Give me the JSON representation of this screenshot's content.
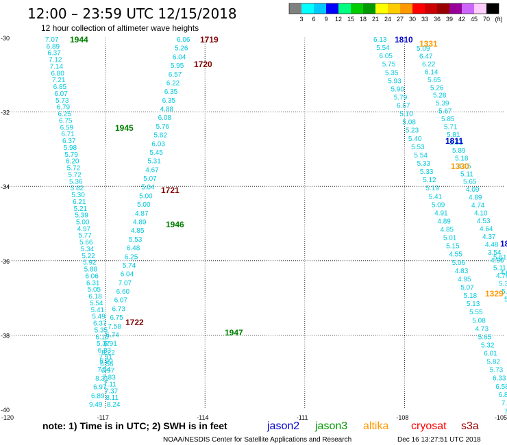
{
  "header": {
    "title": "12:00 – 23:59 UTC 12/15/2018",
    "subtitle": "12 hour collection of altimeter wave heights"
  },
  "colorbar": {
    "colors": [
      "#808080",
      "#00ffff",
      "#00c8ff",
      "#0000ff",
      "#00ff80",
      "#00cc00",
      "#009900",
      "#ffff00",
      "#ffcc00",
      "#ff9900",
      "#ff0000",
      "#cc0000",
      "#990000",
      "#990099",
      "#cc66ff",
      "#ffccff",
      "#000000"
    ],
    "labels": [
      "3",
      "6",
      "9",
      "12",
      "15",
      "18",
      "21",
      "24",
      "27",
      "30",
      "33",
      "36",
      "39",
      "42",
      "45",
      "70",
      "(ft)"
    ]
  },
  "map": {
    "lon_range": [
      -120,
      -105
    ],
    "lat_range": [
      -40,
      -30
    ],
    "x_ticks": [
      "-120",
      "-117",
      "-114",
      "-111",
      "-108",
      "-105"
    ],
    "y_ticks": [
      "-30",
      "-32",
      "-34",
      "-36",
      "-38",
      "-40"
    ],
    "value_color": "#00c8dc",
    "tracks": [
      {
        "values": [
          "7.07",
          "6.89",
          "6.37",
          "7.12",
          "7.14",
          "6.80",
          "7.21",
          "6.85",
          "6.07",
          "5.73",
          "6.79",
          "6.25",
          "6.75",
          "6.59",
          "6.71",
          "6.37",
          "5.98",
          "5.79",
          "6.20",
          "5.72",
          "5.72",
          "5.36",
          "5.82",
          "5.30",
          "6.21",
          "5.21",
          "5.39",
          "5.00",
          "4.97",
          "5.77",
          "5.66",
          "5.34",
          "5.22",
          "5.92",
          "5.88",
          "6.06",
          "6.31",
          "5.05",
          "6.18",
          "5.54",
          "5.41",
          "5.49",
          "6.37",
          "5.35",
          "6.10",
          "5.37",
          "6.83",
          "7.31",
          "6.56",
          "6.97",
          "7.83",
          "7.11",
          "7.37",
          "8.11",
          "8.24"
        ]
      },
      {
        "values": [
          "6.06",
          "5.26",
          "6.04",
          "5.95",
          "6.57",
          "6.22",
          "6.35",
          "6.35",
          "4.88",
          "6.08",
          "5.76",
          "5.82",
          "6.03",
          "5.45",
          "5.31",
          "4.67",
          "5.07",
          "5.04",
          "5.00",
          "5.00",
          "4.87",
          "4.89",
          "4.85",
          "5.53",
          "6.48",
          "6.25",
          "5.74",
          "6.04",
          "7.07",
          "6.60",
          "6.07",
          "6.73",
          "6.75",
          "7.58",
          "6.74",
          "6.91",
          "8.22",
          "6.90",
          "7.54",
          "8.31",
          "6.97",
          "6.89",
          "9.49"
        ]
      },
      {
        "values": [
          "6.13",
          "5.54",
          "6.05",
          "5.75",
          "5.35",
          "5.93",
          "5.90",
          "5.79",
          "6.67",
          "5.10",
          "5.08",
          "5.23",
          "5.40",
          "5.53",
          "5.54",
          "5.33",
          "5.33",
          "5.12",
          "5.19",
          "5.41",
          "5.09",
          "4.91",
          "4.89",
          "4.85",
          "5.01",
          "5.15",
          "4.55",
          "5.06",
          "4.83",
          "4.95",
          "5.07",
          "5.18",
          "5.13",
          "5.55",
          "5.08",
          "4.73",
          "5.65",
          "5.32",
          "6.01",
          "5.82",
          "5.73",
          "6.33",
          "6.58",
          "6.85",
          "7.42",
          "7.47"
        ]
      },
      {
        "values": [
          "5.09",
          "6.47",
          "6.22",
          "6.14",
          "5.65",
          "5.26",
          "5.28",
          "5.39",
          "5.67",
          "5.85",
          "5.71",
          "5.81",
          "5.63",
          "5.89",
          "5.18",
          "5.15",
          "5.11",
          "5.65",
          "4.09",
          "4.89",
          "4.74",
          "4.10",
          "4.53",
          "4.64",
          "4.37",
          "4.48",
          "3.54",
          "4.96",
          "5.11",
          "4.76",
          "5.31",
          "5.15",
          "5.87",
          "4.7"
        ]
      },
      {
        "values": [
          "5.61",
          "4.69",
          "4.25"
        ]
      }
    ],
    "track_labels": [
      {
        "text": "1944",
        "color": "#008000"
      },
      {
        "text": "1945",
        "color": "#008000"
      },
      {
        "text": "1946",
        "color": "#008000"
      },
      {
        "text": "1947",
        "color": "#008000"
      },
      {
        "text": "1719",
        "color": "#800000"
      },
      {
        "text": "1720",
        "color": "#800000"
      },
      {
        "text": "1721",
        "color": "#800000"
      },
      {
        "text": "1722",
        "color": "#800000"
      },
      {
        "text": "1810",
        "color": "#0000cc"
      },
      {
        "text": "1811",
        "color": "#0000cc"
      },
      {
        "text": "1331",
        "color": "#ff9900"
      },
      {
        "text": "1330",
        "color": "#ff9900"
      },
      {
        "text": "1329",
        "color": "#ff9900"
      },
      {
        "text": "18",
        "color": "#0000cc"
      }
    ]
  },
  "footer": {
    "note": "note:  1) Time is in UTC;  2) SWH is in feet",
    "legend": [
      {
        "name": "jason2",
        "color": "#0000cc"
      },
      {
        "name": "jason3",
        "color": "#009900"
      },
      {
        "name": "altika",
        "color": "#ff9900"
      },
      {
        "name": "cryosat",
        "color": "#ff0000"
      },
      {
        "name": "s3a",
        "color": "#990000"
      }
    ],
    "credit": "NOAA/NESDIS Center for Satellite Applications and Research",
    "timestamp": "Dec 16 13:27:51 UTC 2018"
  }
}
